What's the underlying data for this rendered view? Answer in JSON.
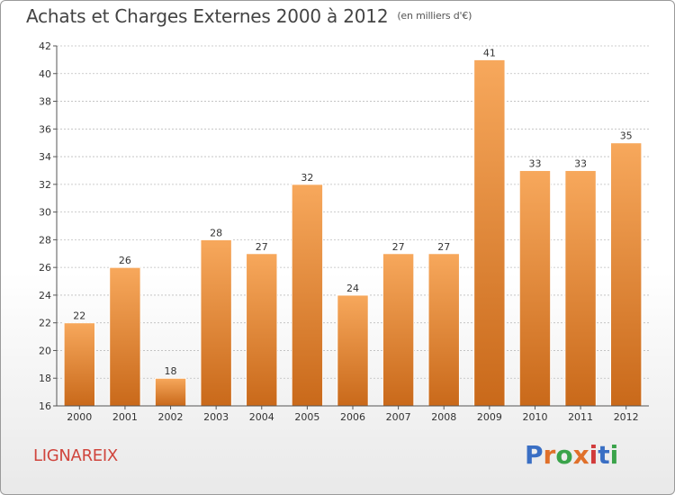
{
  "header": {
    "title": "Achats et Charges Externes 2000 à 2012",
    "unit": "(en milliers d'€)"
  },
  "footer": {
    "commune": "LIGNAREIX",
    "logo_text": "Proxiti",
    "logo_colors": [
      "#3a6fc4",
      "#e0702a",
      "#3aa34a",
      "#e0702a",
      "#d13b3b",
      "#3a6fc4",
      "#3aa34a"
    ]
  },
  "colors": {
    "bar_top": "#f7a85c",
    "bar_bottom": "#c9691a",
    "grid": "#bdbdbd"
  },
  "chart_data": {
    "type": "bar",
    "title": "Achats et Charges Externes 2000 à 2012",
    "subtitle": "(en milliers d'€)",
    "categories": [
      "2000",
      "2001",
      "2002",
      "2003",
      "2004",
      "2005",
      "2006",
      "2007",
      "2008",
      "2009",
      "2010",
      "2011",
      "2012"
    ],
    "values": [
      22,
      26,
      18,
      28,
      27,
      32,
      24,
      27,
      27,
      41,
      33,
      33,
      35
    ],
    "ylim": [
      16,
      42
    ],
    "yticks": [
      16,
      18,
      20,
      22,
      24,
      26,
      28,
      30,
      32,
      34,
      36,
      38,
      40,
      42
    ],
    "grid": true,
    "data_labels": true
  }
}
